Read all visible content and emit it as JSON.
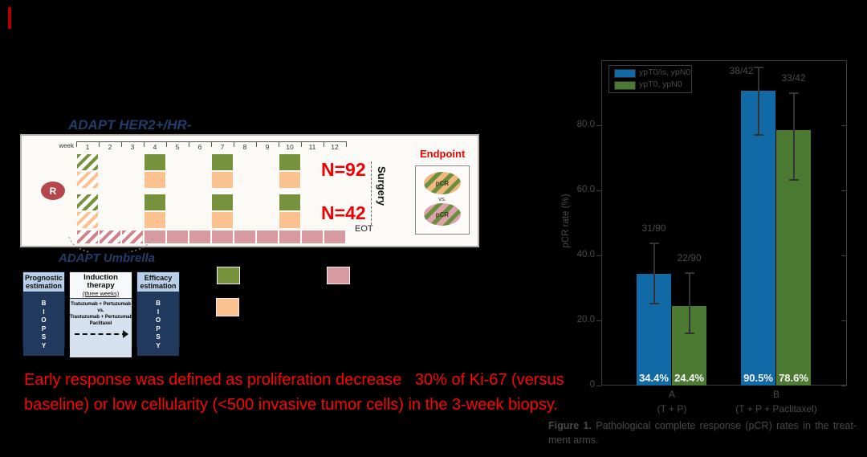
{
  "schema": {
    "title": "ADAPT HER2+/HR-",
    "week_label": "week",
    "weeks": [
      "1",
      "2",
      "3",
      "4",
      "5",
      "6",
      "7",
      "8",
      "9",
      "10",
      "11",
      "12"
    ],
    "randomization_label": "R",
    "arm1_n": "N=92",
    "arm2_n": "N=42",
    "surgery_label": "Surgery",
    "eot_label": "EOT",
    "endpoint": {
      "title": "Endpoint",
      "top_ellipse_label": "pCR",
      "vs_label": "vs.",
      "bottom_ellipse_label": "pCR"
    },
    "colors": {
      "green": "#76923d",
      "orange": "#fbc18f",
      "pink": "#d79aa0",
      "r_circle": "#b5464b",
      "title_blue": "#1f3e6b",
      "red": "#f20000"
    }
  },
  "umbrella": {
    "title": "ADAPT Umbrella",
    "left_box": {
      "header": "Prognostic estimation",
      "body_letters": "BIOPSY"
    },
    "middle_box": {
      "header": "Induction therapy",
      "subheader": "(three weeks)",
      "line1": "Tratuzumab + Pertuzumab",
      "line2": "vs.",
      "line3": "Trastuzumab + Pertuzumab +",
      "line4": "Paclitaxel"
    },
    "right_box": {
      "header": "Efficacy estimation",
      "body_letters": "BIOPSY"
    }
  },
  "note": {
    "line1": "Early response was defined as proliferation decrease   30% of Ki-67 (versus",
    "line2": "baseline) or low cellularity (<500 invasive tumor cells) in the 3-week biopsy.",
    "color": "#fe0404"
  },
  "chart_data": {
    "type": "bar",
    "title": "",
    "xlabel": "",
    "ylabel": "pCR rate (%)",
    "ylim": [
      0,
      100
    ],
    "yticks": [
      0,
      20,
      40,
      60,
      80
    ],
    "ytick_labels": [
      "0",
      "20.0",
      "40.0",
      "60.0",
      "80.0"
    ],
    "grid": false,
    "legend_position": "upper left",
    "groups": [
      {
        "label": "A",
        "sublabel": "(T + P)"
      },
      {
        "label": "B",
        "sublabel": "(T + P + Paclitaxel)"
      }
    ],
    "series": [
      {
        "name": "ypT0/is, ypN0",
        "color": "#1169a6",
        "values": [
          34.4,
          90.5
        ],
        "value_labels": [
          "34.4%",
          "90.5%"
        ],
        "fractions": [
          "31/90",
          "38/42"
        ],
        "err_low": [
          25.3,
          77.1
        ],
        "err_high": [
          43.8,
          97.8
        ]
      },
      {
        "name": "ypT0, ypN0",
        "color": "#4d7a33",
        "values": [
          24.4,
          78.6
        ],
        "value_labels": [
          "24.4%",
          "78.6%"
        ],
        "fractions": [
          "22/90",
          "33/42"
        ],
        "err_low": [
          16.0,
          63.3
        ],
        "err_high": [
          34.5,
          89.9
        ]
      }
    ]
  },
  "caption": {
    "line1_bold": "Figure 1.",
    "line1_rest": " Pathological complete response (pCR) rates in the treat-",
    "line2": "ment arms."
  }
}
